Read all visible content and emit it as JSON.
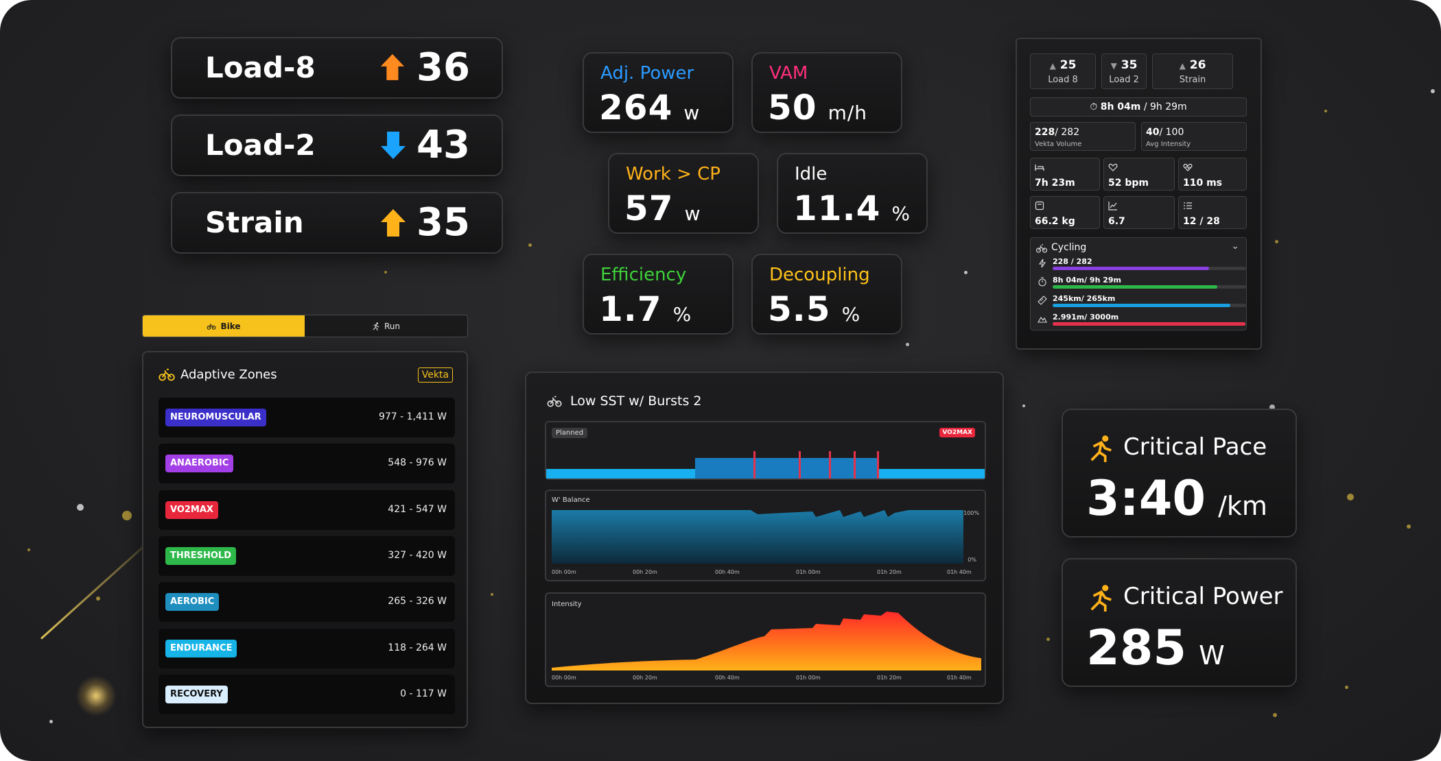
{
  "colors": {
    "accent_yellow": "#f6c21b",
    "up_orange": "#ff8a1f",
    "down_blue": "#1aa3ff",
    "adj_power": "#2b9bff",
    "vam": "#ff2e7e",
    "work_cp": "#ffb21a",
    "idle": "#ffffff",
    "efficiency": "#3fd13a",
    "decoupling": "#ffc21a"
  },
  "loads": [
    {
      "label": "Load-8",
      "direction": "up",
      "value": "36"
    },
    {
      "label": "Load-2",
      "direction": "down",
      "value": "43"
    },
    {
      "label": "Strain",
      "direction": "up",
      "value": "35"
    }
  ],
  "metrics": {
    "adj_power": {
      "title": "Adj. Power",
      "value": "264",
      "unit": "w"
    },
    "vam": {
      "title": "VAM",
      "value": "50",
      "unit": "m/h"
    },
    "work_cp": {
      "title": "Work > CP",
      "value": "57",
      "unit": "w"
    },
    "idle": {
      "title": "Idle",
      "value": "11.4",
      "unit": "%"
    },
    "efficiency": {
      "title": "Efficiency",
      "value": "1.7",
      "unit": "%"
    },
    "decoupling": {
      "title": "Decoupling",
      "value": "5.5",
      "unit": "%"
    }
  },
  "summary": {
    "top": [
      {
        "value": "25",
        "label": "Load 8",
        "direction": "up"
      },
      {
        "value": "35",
        "label": "Load 2",
        "direction": "down"
      },
      {
        "value": "26",
        "label": "Strain",
        "direction": "up"
      }
    ],
    "duration": "8h 04m",
    "duration_sep": "/",
    "duration_total": "9h 29m",
    "volume": {
      "value": "228",
      "max": "/ 282",
      "label": "Vekta Volume"
    },
    "intensity": {
      "value": "40",
      "max": "/ 100",
      "label": "Avg Intensity"
    },
    "tiles": [
      {
        "icon": "bed-icon",
        "value": "7h 23m"
      },
      {
        "icon": "heart-icon",
        "value": "52 bpm"
      },
      {
        "icon": "hrv-heart-icon",
        "value": "110 ms"
      },
      {
        "icon": "scale-icon",
        "value": "66.2 kg"
      },
      {
        "icon": "trend-icon",
        "value": "6.7"
      },
      {
        "icon": "checklist-icon",
        "value": "12 / 28"
      }
    ],
    "sport": "Cycling",
    "bars": [
      {
        "icon": "bolt-icon",
        "label": "228 / 282",
        "fraction": 0.81,
        "color": "#8a3fe0"
      },
      {
        "icon": "stopwatch-icon",
        "label": "8h 04m/ 9h 29m",
        "fraction": 0.85,
        "color": "#2fb84a"
      },
      {
        "icon": "ruler-icon",
        "label": "245km/ 265km",
        "fraction": 0.92,
        "color": "#1a9fe0"
      },
      {
        "icon": "mountain-icon",
        "label": "2.991m/ 3000m",
        "fraction": 0.997,
        "color": "#e8314a"
      }
    ]
  },
  "toggle": {
    "bike": "Bike",
    "run": "Run"
  },
  "zones": {
    "title": "Adaptive Zones",
    "badge": "Vekta",
    "rows": [
      {
        "name": "NEUROMUSCULAR",
        "range": "977 - 1,411 W",
        "color": "#3b2fc9"
      },
      {
        "name": "ANAEROBIC",
        "range": "548 - 976 W",
        "color": "#a23fe6"
      },
      {
        "name": "VO2MAX",
        "range": "421 - 547 W",
        "color": "#e8273c"
      },
      {
        "name": "THRESHOLD",
        "range": "327 - 420 W",
        "color": "#2fb84a"
      },
      {
        "name": "AEROBIC",
        "range": "265 - 326 W",
        "color": "#1f8fbf"
      },
      {
        "name": "ENDURANCE",
        "range": "118 - 264 W",
        "color": "#17b4e8"
      },
      {
        "name": "RECOVERY",
        "range": "0 - 117 W",
        "color": "#d9efff"
      }
    ]
  },
  "workout": {
    "title": "Low SST w/ Bursts 2",
    "planned_label": "Planned",
    "planned_tag": "VO2MAX",
    "balance_label": "W' Balance",
    "balance_max": "100%",
    "balance_min": "0%",
    "intensity_label": "Intensity",
    "time_ticks": [
      "00h 00m",
      "00h 20m",
      "00h 40m",
      "01h 00m",
      "01h 20m",
      "01h 40m"
    ]
  },
  "critical_pace": {
    "title": "Critical Pace",
    "value": "3:40",
    "unit": "/km"
  },
  "critical_power": {
    "title": "Critical Power",
    "value": "285",
    "unit": "W"
  }
}
